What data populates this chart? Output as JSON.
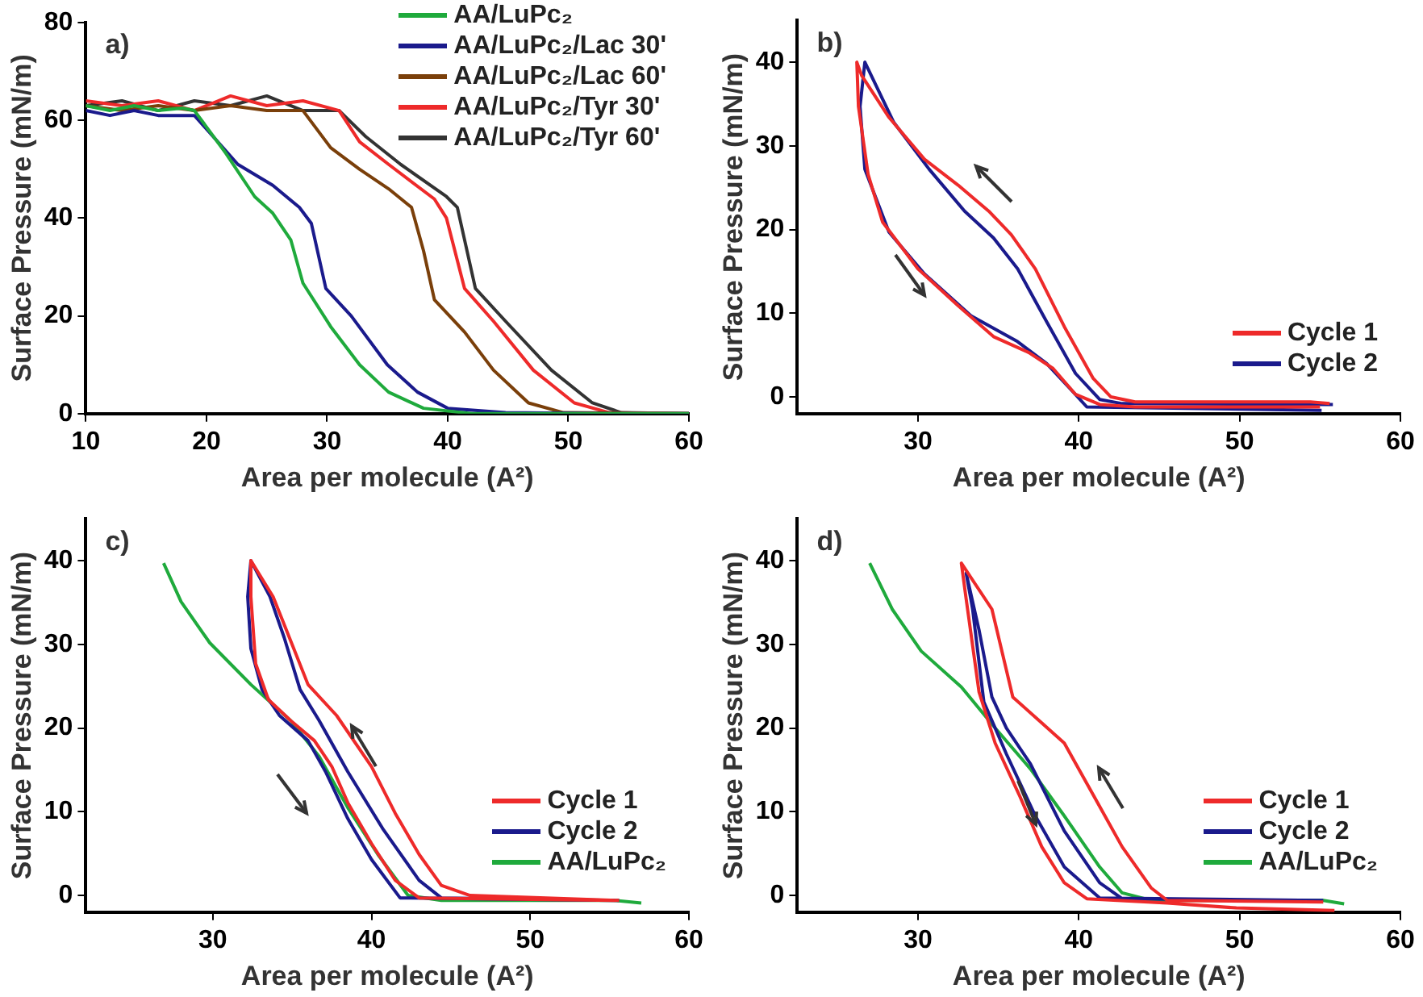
{
  "chart_data": [
    {
      "type": "line",
      "title": "a)",
      "xlabel": "Area per molecule (A²)",
      "ylabel": "Surface Pressure (mN/m)",
      "xlim": [
        10,
        60
      ],
      "xticks": [
        10,
        20,
        30,
        40,
        50,
        60
      ],
      "ylim": [
        0,
        80
      ],
      "yticks": [
        0,
        20,
        40,
        60,
        80
      ],
      "legend": "top right",
      "series": [
        {
          "name": "AA/LuPc₂",
          "color": "#1faa3c",
          "x": [
            10,
            12,
            14,
            16,
            18,
            19,
            21.6,
            24,
            25.5,
            27,
            28,
            30.3,
            32.7,
            35.1,
            38,
            42,
            60
          ],
          "values": [
            63,
            62,
            63,
            62,
            62.5,
            62,
            53.3,
            44.4,
            41,
            35.5,
            26.7,
            17.8,
            10,
            4.4,
            1.1,
            0,
            0
          ]
        },
        {
          "name": "AA/LuPc₂/Lac 30'",
          "color": "#1a1a8c",
          "x": [
            10,
            12,
            14,
            16,
            19,
            22.6,
            25.5,
            27.7,
            28.7,
            29.9,
            32,
            35,
            37.5,
            40,
            44.8,
            53,
            60
          ],
          "values": [
            62,
            61,
            62,
            61,
            61,
            51,
            46.7,
            42.2,
            38.9,
            25.6,
            20,
            10,
            4.4,
            1.1,
            0.2,
            0,
            0
          ]
        },
        {
          "name": "AA/LuPc₂/Lac 60'",
          "color": "#7a3f0a",
          "x": [
            10,
            13,
            16,
            19,
            22,
            25,
            28,
            30.3,
            32.7,
            35.1,
            37,
            38,
            38.9,
            41.4,
            43.8,
            46.7,
            49.6,
            60
          ],
          "values": [
            63,
            62,
            63,
            62,
            63,
            62,
            62,
            54.4,
            50,
            46,
            42.2,
            33.3,
            23.3,
            16.7,
            8.9,
            2.2,
            0.2,
            0
          ]
        },
        {
          "name": "AA/LuPc₂/Tyr 30'",
          "color": "#ee2a2a",
          "x": [
            10,
            13,
            16,
            19,
            22,
            25,
            28,
            31,
            32.7,
            35.1,
            38.9,
            39.9,
            41.4,
            43.8,
            47.1,
            50.5,
            53.4,
            60
          ],
          "values": [
            64,
            63,
            64,
            62,
            65,
            63,
            64,
            62,
            55.6,
            51,
            43.9,
            40,
            25.6,
            18.9,
            8.9,
            2.2,
            0.2,
            0
          ]
        },
        {
          "name": "AA/LuPc₂/Tyr 60'",
          "color": "#333333",
          "x": [
            10,
            13,
            16,
            19,
            22,
            25,
            28,
            31,
            33.2,
            36.1,
            39.9,
            40.8,
            42.3,
            44.8,
            48.6,
            52,
            54.4,
            60
          ],
          "values": [
            63,
            64,
            62,
            64,
            63,
            65,
            62,
            62,
            56.7,
            51,
            44.4,
            42.2,
            25.6,
            18.9,
            8.9,
            2.2,
            0.2,
            0
          ]
        }
      ]
    },
    {
      "type": "line",
      "title": "b)",
      "xlabel": "Area per molecule (A²)",
      "ylabel": "Surface Pressure (mN/m)",
      "xlim": [
        22.5,
        60
      ],
      "xticks": [
        30,
        40,
        50,
        60
      ],
      "ylim": [
        -2,
        45
      ],
      "yticks": [
        0,
        10,
        20,
        30,
        40
      ],
      "legend": "bottom right",
      "series": [
        {
          "name": "Cycle 1",
          "color": "#ee2a2a",
          "x": [
            55.6,
            54.4,
            43.5,
            42,
            40.9,
            39.1,
            37.3,
            35.8,
            34.4,
            32.5,
            30.4,
            28.2,
            26.5,
            26.2,
            26.3,
            26.9,
            27.8,
            30,
            32.5,
            34.7,
            36.9,
            38.4,
            39.8,
            41.3,
            43.5,
            55
          ],
          "values": [
            -0.8,
            -0.6,
            -0.6,
            0,
            2.2,
            8.4,
            15.3,
            19.4,
            22.2,
            25.3,
            28.4,
            33.4,
            38.4,
            40,
            34.7,
            26.6,
            20.9,
            15.3,
            10.9,
            7.2,
            5.3,
            3.4,
            0.3,
            -0.9,
            -1.2,
            -1.2
          ]
        },
        {
          "name": "Cycle 2",
          "color": "#1a1a8c",
          "x": [
            55.8,
            42.7,
            41.3,
            39.8,
            38,
            36.2,
            34.7,
            32.9,
            30.7,
            28.5,
            26.7,
            26.4,
            26.7,
            28.2,
            30.4,
            33.3,
            36.2,
            38,
            39.5,
            40.5,
            55.1
          ],
          "values": [
            -0.9,
            -0.8,
            -0.3,
            2.8,
            9,
            15.3,
            19,
            22.2,
            27.2,
            32.8,
            40,
            34.7,
            27.2,
            19.7,
            14.7,
            9.7,
            6.6,
            4,
            0.9,
            -1.2,
            -1.6
          ]
        }
      ]
    },
    {
      "type": "line",
      "title": "c)",
      "xlabel": "Area per molecule (A²)",
      "ylabel": "Surface Pressure (mN/m)",
      "xlim": [
        22,
        60
      ],
      "xticks": [
        30,
        40,
        50,
        60
      ],
      "ylim": [
        -2,
        45
      ],
      "yticks": [
        0,
        10,
        20,
        30,
        40
      ],
      "legend": "bottom right",
      "series": [
        {
          "name": "Cycle 1",
          "color": "#ee2a2a",
          "x": [
            55.6,
            46.2,
            44.4,
            43,
            41.5,
            40,
            37.8,
            36,
            35.1,
            33.8,
            32.4,
            32.4,
            32.7,
            33.5,
            34.9,
            36.4,
            37.5,
            38.5,
            40,
            41.5,
            43,
            55.3
          ],
          "values": [
            -0.6,
            0,
            1.2,
            4.9,
            9.8,
            15.4,
            21.5,
            25.2,
            29.5,
            35.7,
            40,
            35.7,
            27.7,
            23.4,
            20.9,
            18.5,
            15.4,
            11.1,
            6.2,
            1.8,
            -0.3,
            -0.6
          ]
        },
        {
          "name": "Cycle 2",
          "color": "#1a1a8c",
          "x": [
            55.6,
            44.4,
            43,
            40.7,
            38.5,
            36.7,
            35.5,
            34.5,
            33.6,
            32.4,
            32.2,
            32.4,
            33.1,
            34.2,
            36,
            37.1,
            38.5,
            40,
            41.8,
            55.3
          ],
          "values": [
            -0.6,
            -0.3,
            1.8,
            8,
            14.8,
            20.9,
            24.6,
            30.8,
            35.7,
            40,
            35.7,
            29.5,
            24.6,
            21.5,
            18.5,
            14.8,
            9.2,
            4.3,
            -0.3,
            -0.6
          ]
        },
        {
          "name": "AA/LuPc₂",
          "color": "#1faa3c",
          "x": [
            26.9,
            28,
            29.8,
            32.4,
            34.9,
            36.7,
            38.5,
            40.4,
            42.3,
            44.4,
            55.3,
            57
          ],
          "values": [
            39.7,
            35.1,
            30.2,
            25.2,
            20.9,
            16.6,
            10.5,
            4.9,
            0,
            -0.6,
            -0.6,
            -0.9
          ]
        }
      ]
    },
    {
      "type": "line",
      "title": "d)",
      "xlabel": "Area per molecule (A²)",
      "ylabel": "Surface Pressure (mN/m)",
      "xlim": [
        22.5,
        60
      ],
      "xticks": [
        30,
        40,
        50,
        60
      ],
      "ylim": [
        -2,
        45
      ],
      "yticks": [
        0,
        10,
        20,
        30,
        40
      ],
      "legend": "bottom right",
      "series": [
        {
          "name": "Cycle 1",
          "color": "#ee2a2a",
          "x": [
            55.2,
            45.5,
            44.5,
            42.7,
            40.9,
            39.1,
            37.7,
            35.9,
            34.6,
            32.7,
            33,
            33.8,
            34.8,
            36.3,
            37.7,
            39.1,
            40.5,
            45.5,
            49.8,
            55.9
          ],
          "values": [
            -0.8,
            -0.6,
            0.9,
            5.8,
            12,
            18.2,
            20.6,
            23.7,
            34.2,
            39.7,
            35.4,
            24.3,
            18.2,
            12,
            5.8,
            1.5,
            -0.4,
            -0.9,
            -1.5,
            -1.8
          ]
        },
        {
          "name": "Cycle 2",
          "color": "#1a1a8c",
          "x": [
            55.2,
            42.7,
            41.3,
            39.1,
            37,
            35.5,
            34.6,
            33.8,
            33,
            33.4,
            34.1,
            35.5,
            37.3,
            39.1,
            41.3,
            54.8
          ],
          "values": [
            -0.6,
            -0.4,
            1.5,
            7.7,
            15.7,
            20,
            23.7,
            31.7,
            38.5,
            34.2,
            23.1,
            16.9,
            9.5,
            3.4,
            -0.3,
            -0.6
          ]
        },
        {
          "name": "AA/LuPc₂",
          "color": "#1faa3c",
          "x": [
            27,
            28.4,
            30.2,
            32.7,
            34.8,
            37,
            39.1,
            41.3,
            42.7,
            44.5,
            55.2,
            56.5
          ],
          "values": [
            39.7,
            34.2,
            29.2,
            24.9,
            20,
            15.1,
            9.5,
            3.4,
            0.3,
            -0.6,
            -0.6,
            -1
          ]
        }
      ]
    }
  ]
}
